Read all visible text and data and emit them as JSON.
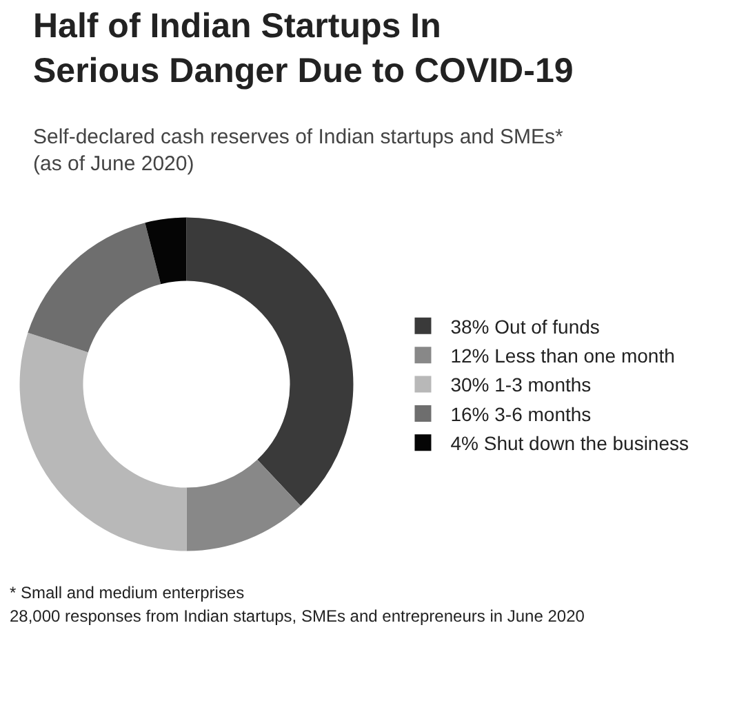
{
  "chart_data": {
    "type": "donut",
    "title": "Half of Indian Startups In Serious Danger Due to COVID-19",
    "subtitle": "Self-declared cash reserves of Indian startups and SMEs* (as of June 2020)",
    "categories": [
      "Out of funds",
      "Less than one month",
      "1-3 months",
      "3-6 months",
      "Shut down the business"
    ],
    "values": [
      38,
      12,
      30,
      16,
      4
    ],
    "colors": [
      "#3a3a3a",
      "#888888",
      "#b8b8b8",
      "#6e6e6e",
      "#050505"
    ],
    "value_labels": [
      "38%",
      "12%",
      "30%",
      "16%",
      "4%"
    ],
    "legend": "right",
    "annotations": [
      "* Small and medium enterprises",
      "28,000 responses from Indian startups, SMEs and entrepreneurs in June 2020"
    ]
  }
}
